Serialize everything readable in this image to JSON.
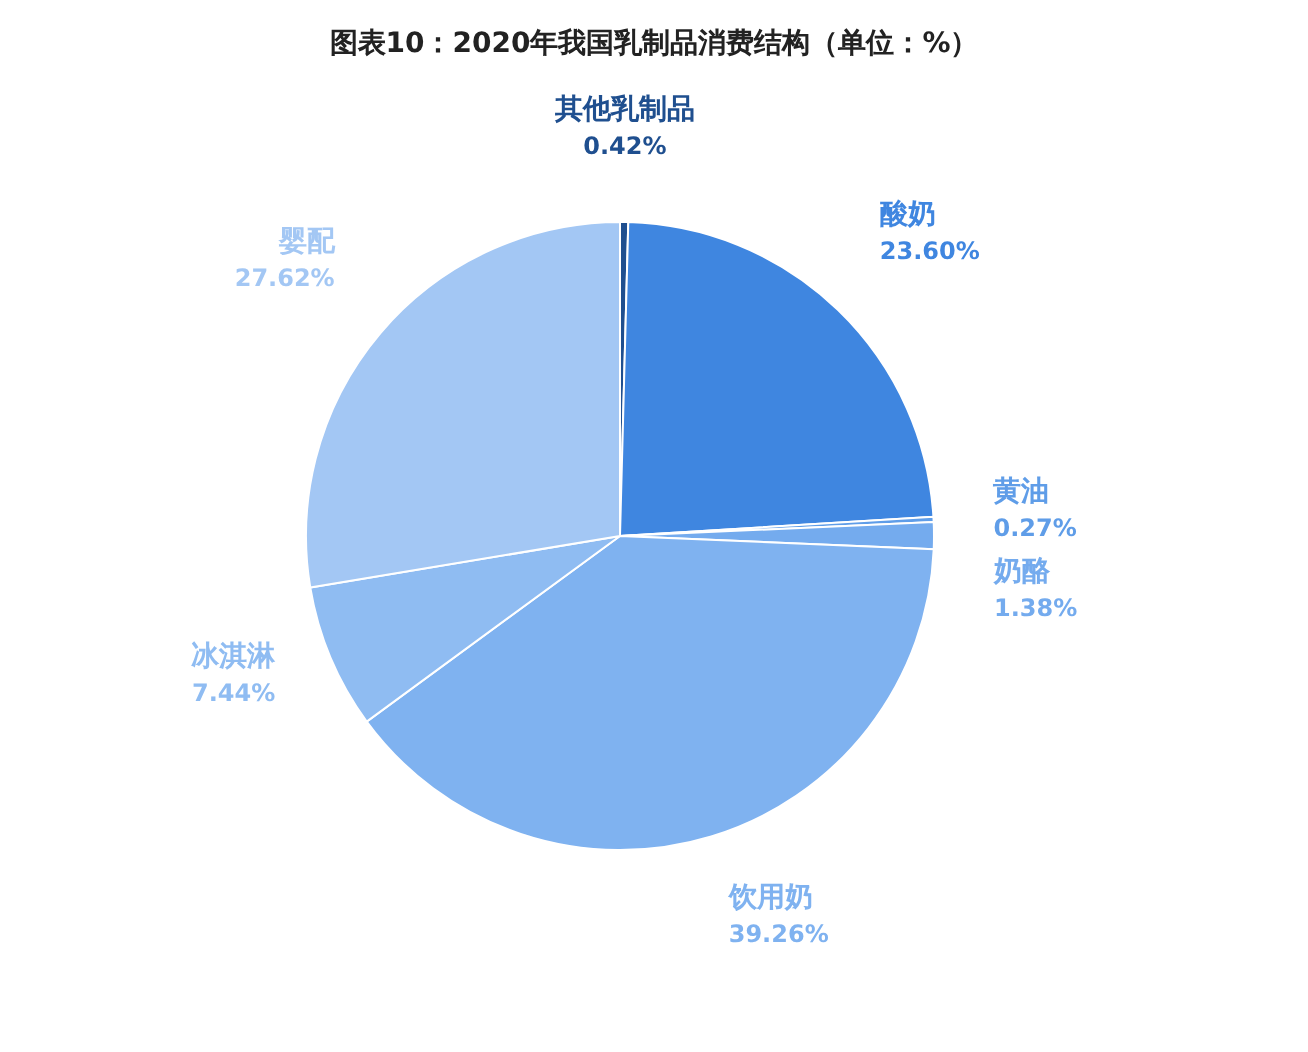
{
  "chart_data": {
    "type": "pie",
    "title": "图表10：2020年我国乳制品消费结构（单位：%）",
    "categories": [
      "其他乳制品",
      "酸奶",
      "黄油",
      "奶酪",
      "饮用奶",
      "冰淇淋",
      "婴配"
    ],
    "values": [
      0.42,
      23.6,
      0.27,
      1.38,
      39.26,
      7.44,
      27.62
    ],
    "colors": [
      "#1f4f8f",
      "#3f86e0",
      "#5f9de8",
      "#74abee",
      "#7fb2f0",
      "#8fbcf2",
      "#a3c7f4"
    ],
    "value_labels": [
      "0.42%",
      "23.60%",
      "0.27%",
      "1.38%",
      "39.26%",
      "7.44%",
      "27.62%"
    ]
  }
}
